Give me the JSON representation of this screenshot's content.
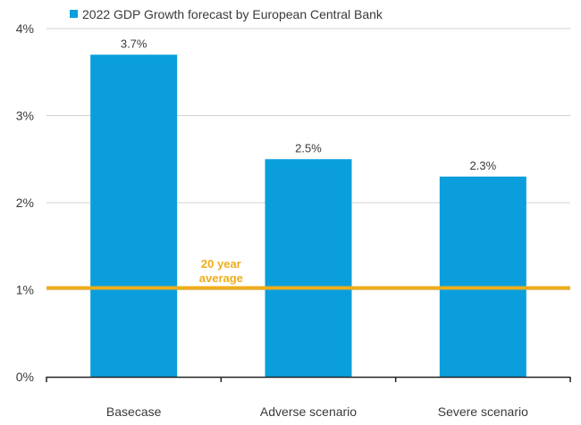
{
  "chart_data": {
    "type": "bar",
    "categories": [
      "Basecase",
      "Adverse scenario",
      "Severe scenario"
    ],
    "series": [
      {
        "name": "2022 GDP Growth forecast by European Central Bank",
        "values": [
          3.7,
          2.5,
          2.3
        ],
        "value_labels": [
          "3.7%",
          "2.5%",
          "2.3%"
        ],
        "color": "#0a9fdc"
      }
    ],
    "ylim": [
      0,
      4
    ],
    "yticks": [
      0,
      1,
      2,
      3,
      4
    ],
    "ytick_labels": [
      "0%",
      "1%",
      "2%",
      "3%",
      "4%"
    ],
    "grid": true,
    "legend_position": "top-left",
    "reference_line": {
      "value": 1.02,
      "label_lines": [
        "20 year",
        "average"
      ],
      "color": "#f0ad1a"
    }
  }
}
